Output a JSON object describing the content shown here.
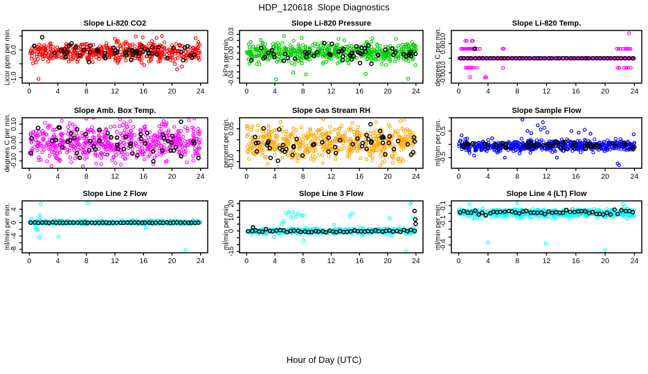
{
  "figure": {
    "title": "HDP_120618  Slope Diagnostics",
    "xlabel": "Hour of Day (UTC)",
    "background": "#FFFFFF",
    "axis_color": "#000000",
    "overlay_point_color": "#000000",
    "marker": "open-circle"
  },
  "chart_data": {
    "type": "scatter",
    "grid": false,
    "layout": "3x3-panel-grid",
    "x_range": [
      0,
      24
    ],
    "xticks": [
      0,
      4,
      8,
      12,
      16,
      20,
      24
    ],
    "xlabel": "Hour of Day (UTC)",
    "panels": [
      {
        "title": "Slope Li-820 CO2",
        "ylabel": "Licor ppm per min.",
        "color": "#FF0000",
        "ylim": [
          -1.2,
          0.7
        ],
        "yticks": [
          {
            "v": 0.5,
            "label": ""
          },
          {
            "v": 0.0,
            "label": "0.0"
          },
          {
            "v": -0.5,
            "label": ""
          },
          {
            "v": -1.0,
            "label": "-1.0"
          }
        ],
        "cloud": {
          "n": 520,
          "mean": -0.07,
          "sd": 0.17,
          "min": -0.62,
          "max": 0.48,
          "seed": 101
        },
        "outliers": [
          [
            1.3,
            -1.05
          ],
          [
            12.0,
            0.4
          ],
          [
            15.9,
            0.45
          ],
          [
            18.6,
            0.5
          ],
          [
            20.7,
            -0.7
          ],
          [
            21.4,
            -0.6
          ],
          [
            23.3,
            0.42
          ],
          [
            16.1,
            -0.55
          ]
        ],
        "black": {
          "mode": "scatter",
          "n": 55,
          "mean": -0.1,
          "sd": 0.14,
          "seed": 201
        },
        "black_outliers": []
      },
      {
        "title": "Slope Li-820 Pressure",
        "ylabel": "kPa per min.",
        "color": "#00CD00",
        "ylim": [
          -0.048,
          0.036
        ],
        "yticks": [
          {
            "v": 0.03,
            "label": "0.03"
          },
          {
            "v": 0.02,
            "label": ""
          },
          {
            "v": 0.01,
            "label": ""
          },
          {
            "v": 0.0,
            "label": "0.00"
          },
          {
            "v": -0.01,
            "label": ""
          },
          {
            "v": -0.02,
            "label": ""
          },
          {
            "v": -0.03,
            "label": ""
          },
          {
            "v": -0.04,
            "label": "-0.04"
          }
        ],
        "cloud": {
          "n": 520,
          "mean": 0.001,
          "sd": 0.008,
          "min": -0.026,
          "max": 0.024,
          "seed": 102
        },
        "outliers": [
          [
            2.0,
            0.021
          ],
          [
            4.2,
            -0.042
          ],
          [
            5.3,
            0.027
          ],
          [
            6.6,
            -0.031
          ],
          [
            7.8,
            0.024
          ],
          [
            8.4,
            -0.034
          ],
          [
            16.9,
            -0.033
          ],
          [
            22.9,
            -0.041
          ]
        ],
        "black": {
          "mode": "scatter",
          "n": 55,
          "mean": 0.0,
          "sd": 0.0075,
          "seed": 202
        },
        "black_outliers": []
      },
      {
        "title": "Slope Li-820 Temp.",
        "ylabel": "degrees C per min.",
        "color": "#FF00FF",
        "ylim": [
          -0.0017,
          0.0019
        ],
        "yticks": [
          {
            "v": 0.001,
            "label": "0.0010"
          },
          {
            "v": 0.0,
            "label": ""
          },
          {
            "v": -0.001,
            "label": "-0.0010"
          }
        ],
        "cloud": {
          "n": 420,
          "mean": 0.0,
          "sd": 0.0,
          "min": 0.0,
          "max": 0.0,
          "seed": 103
        },
        "outliers": [
          [
            0.9,
            0.0012
          ],
          [
            1.1,
            0.0012
          ],
          [
            1.8,
            0.0012
          ],
          [
            1.95,
            0.0012
          ],
          [
            23.25,
            0.0017
          ],
          [
            0.3,
            0.00065
          ],
          [
            0.5,
            0.00065
          ],
          [
            0.65,
            0.00065
          ],
          [
            0.8,
            0.00065
          ],
          [
            1.0,
            0.00065
          ],
          [
            1.15,
            0.00065
          ],
          [
            1.3,
            0.00065
          ],
          [
            1.45,
            0.00065
          ],
          [
            1.6,
            0.00065
          ],
          [
            1.75,
            0.00065
          ],
          [
            1.9,
            0.00065
          ],
          [
            2.05,
            0.00065
          ],
          [
            2.3,
            0.00065
          ],
          [
            2.55,
            0.00065
          ],
          [
            2.9,
            0.00065
          ],
          [
            6.0,
            0.00065
          ],
          [
            6.15,
            0.00065
          ],
          [
            21.6,
            0.00065
          ],
          [
            21.85,
            0.00065
          ],
          [
            22.1,
            0.00065
          ],
          [
            22.45,
            0.00065
          ],
          [
            22.75,
            0.00065
          ],
          [
            22.95,
            0.00065
          ],
          [
            23.1,
            0.00065
          ],
          [
            23.3,
            0.00065
          ],
          [
            23.45,
            0.00065
          ],
          [
            0.95,
            -0.00065
          ],
          [
            1.15,
            -0.00065
          ],
          [
            1.4,
            -0.00065
          ],
          [
            1.55,
            -0.00065
          ],
          [
            1.75,
            -0.00065
          ],
          [
            2.0,
            -0.00065
          ],
          [
            2.45,
            -0.00065
          ],
          [
            6.05,
            -0.00065
          ],
          [
            21.7,
            -0.00065
          ],
          [
            21.95,
            -0.00065
          ],
          [
            22.6,
            -0.00065
          ],
          [
            22.9,
            -0.00065
          ],
          [
            23.15,
            -0.00065
          ],
          [
            23.5,
            -0.00065
          ],
          [
            1.55,
            -0.0013
          ],
          [
            3.6,
            -0.0013
          ],
          [
            3.75,
            -0.0013
          ]
        ],
        "black": {
          "mode": "hourly",
          "n": 48,
          "mean": 0.0,
          "sd": 0.0,
          "seed": 203
        },
        "black_outliers": [
          [
            2.2,
            0.00065
          ]
        ]
      },
      {
        "title": "Slope Amb. Box Temp.",
        "ylabel": "degrees C per min.",
        "color": "#FF00FF",
        "ylim": [
          -0.14,
          0.135
        ],
        "yticks": [
          {
            "v": 0.1,
            "label": "0.10"
          },
          {
            "v": 0.05,
            "label": ""
          },
          {
            "v": 0.0,
            "label": "0.00"
          },
          {
            "v": -0.05,
            "label": ""
          },
          {
            "v": -0.1,
            "label": "-0.10"
          }
        ],
        "cloud": {
          "n": 560,
          "mean": 0.0,
          "sd": 0.052,
          "min": -0.132,
          "max": 0.132,
          "seed": 104
        },
        "outliers": [
          [
            8.0,
            0.13
          ],
          [
            9.0,
            0.135
          ],
          [
            7.5,
            -0.13
          ]
        ],
        "black": {
          "mode": "scatter",
          "n": 55,
          "mean": 0.0,
          "sd": 0.05,
          "seed": 204
        },
        "black_outliers": []
      },
      {
        "title": "Slope Gas Stream RH",
        "ylabel": "percent per min.",
        "color": "#FFA500",
        "ylim": [
          -0.13,
          0.1
        ],
        "yticks": [
          {
            "v": 0.05,
            "label": "0.05"
          },
          {
            "v": 0.0,
            "label": ""
          },
          {
            "v": -0.05,
            "label": ""
          },
          {
            "v": -0.1,
            "label": "-0.10"
          }
        ],
        "cloud": {
          "n": 520,
          "mean": -0.015,
          "sd": 0.038,
          "min": -0.118,
          "max": 0.092,
          "seed": 105
        },
        "outliers": [
          [
            10.9,
            0.095
          ],
          [
            4.8,
            0.08
          ],
          [
            21.8,
            0.085
          ]
        ],
        "black": {
          "mode": "scatter",
          "n": 55,
          "mean": -0.015,
          "sd": 0.035,
          "seed": 205
        },
        "black_outliers": []
      },
      {
        "title": "Slope Sample Flow",
        "ylabel": "ml/min per min.",
        "color": "#0000FF",
        "ylim": [
          -0.9,
          1.0
        ],
        "yticks": [
          {
            "v": 1.0,
            "label": ""
          },
          {
            "v": 0.5,
            "label": "0.5"
          },
          {
            "v": 0.0,
            "label": ""
          },
          {
            "v": -0.5,
            "label": "-0.5"
          }
        ],
        "cloud": {
          "n": 560,
          "mean": -0.05,
          "sd": 0.1,
          "min": -0.33,
          "max": 0.28,
          "seed": 106
        },
        "outliers": [
          [
            0.4,
            0.34
          ],
          [
            2.1,
            -0.42
          ],
          [
            6.3,
            -0.5
          ],
          [
            8.3,
            -0.34
          ],
          [
            8.7,
            0.93
          ],
          [
            9.4,
            0.5
          ],
          [
            9.9,
            0.42
          ],
          [
            10.8,
            0.72
          ],
          [
            11.2,
            0.56
          ],
          [
            11.5,
            0.83
          ],
          [
            11.7,
            0.62
          ],
          [
            12.1,
            0.45
          ],
          [
            13.4,
            -0.5
          ],
          [
            15.4,
            0.5
          ],
          [
            16.4,
            0.44
          ],
          [
            17.2,
            0.55
          ],
          [
            18.0,
            0.4
          ],
          [
            21.7,
            -0.72
          ],
          [
            21.9,
            -0.78
          ],
          [
            23.9,
            0.38
          ]
        ],
        "black": {
          "mode": "scatter",
          "n": 55,
          "mean": -0.05,
          "sd": 0.07,
          "seed": 206
        },
        "black_outliers": []
      },
      {
        "title": "Slope Line 2 Flow",
        "ylabel": "ml/min per min.",
        "color": "#00FFFF",
        "ylim": [
          -9.0,
          6.5
        ],
        "yticks": [
          {
            "v": 4,
            "label": "4"
          },
          {
            "v": 2,
            "label": ""
          },
          {
            "v": 0,
            "label": "0"
          },
          {
            "v": -2,
            "label": ""
          },
          {
            "v": -4,
            "label": "-4"
          },
          {
            "v": -6,
            "label": ""
          },
          {
            "v": -8,
            "label": "-8"
          }
        ],
        "cloud": {
          "n": 460,
          "mean": 0.1,
          "sd": 0.28,
          "min": -0.9,
          "max": 1.0,
          "seed": 107
        },
        "outliers": [
          [
            0.3,
            1.1
          ],
          [
            0.9,
            -1.9
          ],
          [
            1.2,
            -2.1
          ],
          [
            1.4,
            -4.4
          ],
          [
            1.5,
            2.3
          ],
          [
            1.6,
            5.6
          ],
          [
            4.1,
            -4.2
          ],
          [
            8.2,
            5.8
          ],
          [
            16.3,
            -1.5
          ],
          [
            21.9,
            -8.2
          ]
        ],
        "black": {
          "mode": "hourly",
          "n": 48,
          "mean": 0.0,
          "sd": 0.04,
          "seed": 207
        },
        "black_outliers": []
      },
      {
        "title": "Slope Line 3 Flow",
        "ylabel": "ml/min per min.",
        "color": "#00FFFF",
        "ylim": [
          -16,
          22
        ],
        "yticks": [
          {
            "v": 20,
            "label": "20"
          },
          {
            "v": 15,
            "label": ""
          },
          {
            "v": 10,
            "label": "10"
          },
          {
            "v": 5,
            "label": ""
          },
          {
            "v": 0,
            "label": "0"
          },
          {
            "v": -5,
            "label": ""
          },
          {
            "v": -10,
            "label": ""
          },
          {
            "v": -15,
            "label": "-15"
          }
        ],
        "cloud": {
          "n": 460,
          "mean": 0.0,
          "sd": 0.85,
          "min": -2.6,
          "max": 2.6,
          "seed": 108
        },
        "outliers": [
          [
            3.9,
            -4.2
          ],
          [
            5.0,
            5.0
          ],
          [
            5.3,
            7.0
          ],
          [
            5.6,
            13.0
          ],
          [
            6.0,
            14.0
          ],
          [
            6.3,
            10.0
          ],
          [
            6.6,
            13.4
          ],
          [
            7.0,
            10.4
          ],
          [
            7.3,
            12.8
          ],
          [
            7.7,
            11.0
          ],
          [
            8.0,
            11.5
          ],
          [
            8.1,
            -7.0
          ],
          [
            12.4,
            4.6
          ],
          [
            14.6,
            10.8
          ],
          [
            14.9,
            12.8
          ],
          [
            16.4,
            -3.2
          ],
          [
            20.3,
            9.4
          ],
          [
            20.6,
            -3.6
          ],
          [
            22.6,
            -15.0
          ],
          [
            23.2,
            19.8
          ],
          [
            23.4,
            21.0
          ],
          [
            23.6,
            9.8
          ]
        ],
        "black": {
          "mode": "hourly",
          "n": 48,
          "mean": -0.1,
          "sd": 0.5,
          "seed": 208
        },
        "black_outliers": [
          [
            0.9,
            2.6
          ],
          [
            23.8,
            14.6
          ],
          [
            23.9,
            8.4
          ],
          [
            23.95,
            5.2
          ]
        ]
      },
      {
        "title": "Slope Line 4 (LT) Flow",
        "ylabel": "ml/min per min.",
        "color": "#00FFFF",
        "ylim": [
          -0.5,
          0.16
        ],
        "yticks": [
          {
            "v": 0.1,
            "label": "0.1"
          },
          {
            "v": 0.0,
            "label": ""
          },
          {
            "v": -0.1,
            "label": "-0.1"
          },
          {
            "v": -0.2,
            "label": ""
          },
          {
            "v": -0.3,
            "label": ""
          },
          {
            "v": -0.4,
            "label": "-0.4"
          }
        ],
        "cloud": {
          "n": 500,
          "mean": 0.005,
          "sd": 0.027,
          "min": -0.075,
          "max": 0.07,
          "seed": 109
        },
        "outliers": [
          [
            1.5,
            0.12
          ],
          [
            4.0,
            -0.37
          ],
          [
            8.0,
            0.13
          ],
          [
            11.9,
            -0.38
          ],
          [
            20.0,
            -0.47
          ],
          [
            22.4,
            0.12
          ],
          [
            22.7,
            0.09
          ],
          [
            23.1,
            0.06
          ]
        ],
        "black": {
          "mode": "hourly",
          "n": 48,
          "mean": 0.012,
          "sd": 0.016,
          "seed": 209
        },
        "black_outliers": []
      }
    ]
  }
}
